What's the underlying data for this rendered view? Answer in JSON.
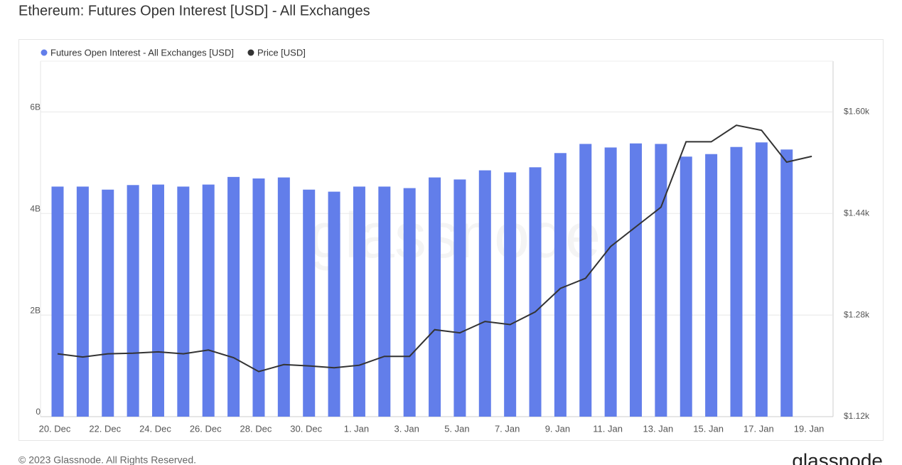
{
  "chart_data": {
    "type": "bar",
    "title": "Ethereum: Futures Open Interest [USD] - All Exchanges",
    "watermark": "glassnode",
    "footer": "© 2023 Glassnode. All Rights Reserved.",
    "logo": "glassnode",
    "categories": [
      "20. Dec",
      null,
      "22. Dec",
      null,
      "24. Dec",
      null,
      "26. Dec",
      null,
      "28. Dec",
      null,
      "30. Dec",
      null,
      "1. Jan",
      null,
      "3. Jan",
      null,
      "5. Jan",
      null,
      "7. Jan",
      null,
      "9. Jan",
      null,
      "11. Jan",
      null,
      "13. Jan",
      null,
      "15. Jan",
      null,
      "17. Jan",
      null,
      "19. Jan"
    ],
    "series": [
      {
        "name": "Futures Open Interest - All Exchanges [USD]",
        "color": "#627eea",
        "type": "bar",
        "values": [
          4530000000,
          4530000000,
          4470000000,
          4560000000,
          4570000000,
          4530000000,
          4570000000,
          4720000000,
          4690000000,
          4710000000,
          4470000000,
          4430000000,
          4530000000,
          4530000000,
          4500000000,
          4710000000,
          4670000000,
          4850000000,
          4810000000,
          4910000000,
          5190000000,
          5370000000,
          5300000000,
          5380000000,
          5370000000,
          5120000000,
          5170000000,
          5310000000,
          5400000000,
          5260000000,
          null
        ]
      },
      {
        "name": "Price [USD]",
        "color": "#333333",
        "type": "line",
        "axis": "y2",
        "values": [
          1219,
          1214,
          1219,
          1220,
          1222,
          1219,
          1225,
          1213,
          1191,
          1202,
          1200,
          1197,
          1201,
          1215,
          1215,
          1257,
          1252,
          1270,
          1265,
          1285,
          1322,
          1338,
          1388,
          1419,
          1450,
          1553,
          1553,
          1579,
          1571,
          1521,
          1530
        ]
      }
    ],
    "ylim": [
      0,
      7000000000
    ],
    "yticks": [
      0,
      {
        "value": 2000000000,
        "label": "2B"
      },
      {
        "value": 4000000000,
        "label": "4B"
      },
      {
        "value": 6000000000,
        "label": "6B"
      }
    ],
    "y2lim": [
      1120,
      1680
    ],
    "y2ticks": [
      {
        "value": 1120,
        "label": "$1.12k"
      },
      {
        "value": 1280,
        "label": "$1.28k"
      },
      {
        "value": 1440,
        "label": "$1.44k"
      },
      {
        "value": 1600,
        "label": "$1.60k"
      }
    ],
    "grid": true,
    "legend": "top-left"
  }
}
